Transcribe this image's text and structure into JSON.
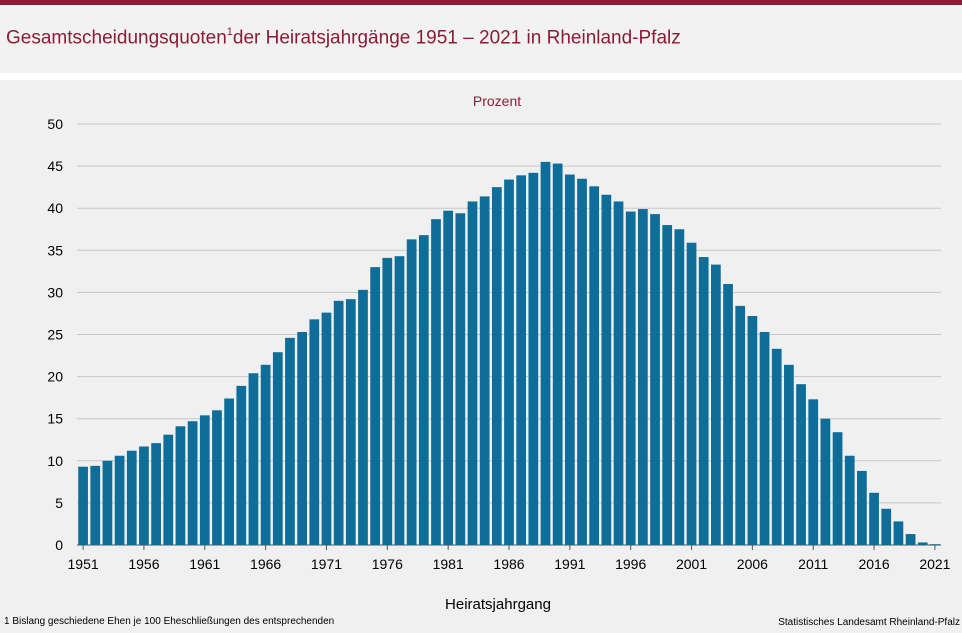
{
  "header": {
    "title_main": "Gesamtscheidungsquoten",
    "title_sup": "1",
    "title_rest": "der Heiratsjahrgänge 1951 – 2021 in Rheinland-Pfalz"
  },
  "chart_data": {
    "type": "bar",
    "unit_label": "Prozent",
    "xlabel": "Heiratsjahrgang",
    "ylim": [
      0,
      50
    ],
    "yticks": [
      0,
      5,
      10,
      15,
      20,
      25,
      30,
      35,
      40,
      45,
      50
    ],
    "xtick_labels": [
      "1951",
      "1956",
      "1961",
      "1966",
      "1971",
      "1976",
      "1981",
      "1986",
      "1991",
      "1996",
      "2001",
      "2006",
      "2011",
      "2016",
      "2021"
    ],
    "grid": true,
    "bar_color": "#0f6e99",
    "categories": [
      1951,
      1952,
      1953,
      1954,
      1955,
      1956,
      1957,
      1958,
      1959,
      1960,
      1961,
      1962,
      1963,
      1964,
      1965,
      1966,
      1967,
      1968,
      1969,
      1970,
      1971,
      1972,
      1973,
      1974,
      1975,
      1976,
      1977,
      1978,
      1979,
      1980,
      1981,
      1982,
      1983,
      1984,
      1985,
      1986,
      1987,
      1988,
      1989,
      1990,
      1991,
      1992,
      1993,
      1994,
      1995,
      1996,
      1997,
      1998,
      1999,
      2000,
      2001,
      2002,
      2003,
      2004,
      2005,
      2006,
      2007,
      2008,
      2009,
      2010,
      2011,
      2012,
      2013,
      2014,
      2015,
      2016,
      2017,
      2018,
      2019,
      2020,
      2021
    ],
    "values": [
      9.3,
      9.4,
      10.0,
      10.6,
      11.2,
      11.7,
      12.1,
      13.1,
      14.1,
      14.7,
      15.4,
      16.0,
      17.4,
      18.9,
      20.4,
      21.4,
      22.9,
      24.6,
      25.3,
      26.8,
      27.6,
      29.0,
      29.2,
      30.3,
      33.0,
      34.1,
      34.3,
      36.3,
      36.8,
      38.7,
      39.7,
      39.4,
      40.8,
      41.4,
      42.5,
      43.4,
      43.9,
      44.2,
      45.5,
      45.3,
      44.0,
      43.5,
      42.6,
      41.6,
      40.8,
      39.6,
      39.9,
      39.3,
      38.0,
      37.5,
      35.9,
      34.2,
      33.3,
      31.0,
      28.4,
      27.2,
      25.3,
      23.3,
      21.4,
      19.1,
      17.3,
      15.0,
      13.4,
      10.6,
      8.8,
      6.2,
      4.3,
      2.8,
      1.3,
      0.3,
      0.1
    ]
  },
  "footer": {
    "footnote": "1 Bislang geschiedene Ehen je 100 Eheschließungen des entsprechenden",
    "source": "Statistisches Landesamt Rheinland-Pfalz"
  }
}
